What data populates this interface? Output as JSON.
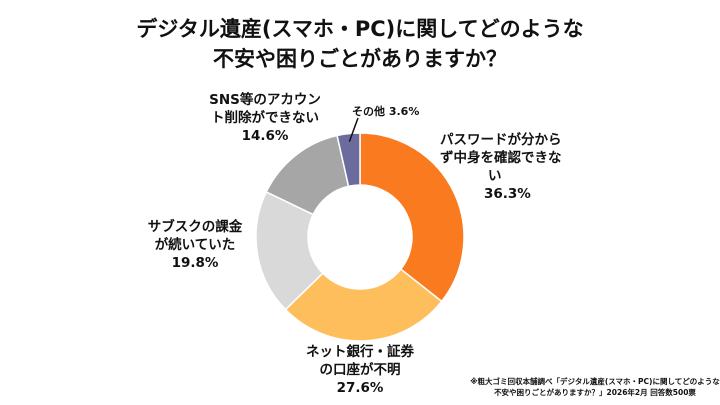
{
  "chart_data": {
    "type": "pie",
    "donut": true,
    "title_lines": [
      "デジタル遺産(スマホ・PC)に関してどのような",
      "不安や困りごとがありますか？"
    ],
    "slices": [
      {
        "label_lines": [
          "パスワードが分から",
          "ず中身を確認できな",
          "い"
        ],
        "value": 36.3,
        "value_label": "36.3%",
        "color": "#F97A1F"
      },
      {
        "label_lines": [
          "ネット銀行・証券",
          "の口座が不明"
        ],
        "value": 27.6,
        "value_label": "27.6%",
        "color": "#FFBE5C"
      },
      {
        "label_lines": [
          "サブスクの課金",
          "が続いていた"
        ],
        "value": 19.8,
        "value_label": "19.8%",
        "color": "#D9D9D9"
      },
      {
        "label_lines": [
          "SNS等のアカウン",
          "ト削除ができない"
        ],
        "value": 14.6,
        "value_label": "14.6%",
        "color": "#A6A6A6"
      },
      {
        "label_lines": [
          "その他"
        ],
        "value": 3.6,
        "value_label": "3.6%",
        "color": "#6B6B9E"
      }
    ],
    "start": "top",
    "direction": "clockwise"
  },
  "footnote_lines": [
    "※粗大ゴミ回収本舗調べ「デジタル遺産(スマホ・PC)に関してどのような",
    "不安や困りごとがありますか？」2026年2月 回答数500票"
  ]
}
